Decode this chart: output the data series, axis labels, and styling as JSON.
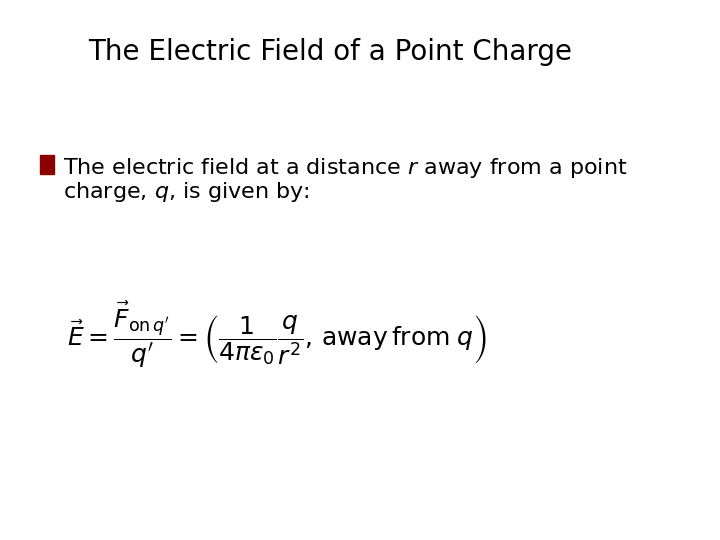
{
  "title": "The Electric Field of a Point Charge",
  "title_fontsize": 20,
  "title_color": "#000000",
  "background_color": "#ffffff",
  "bullet_color": "#8B0000",
  "bullet_text_line1": "The electric field at a distance $r$ away from a point",
  "bullet_text_line2": "charge, $q$, is given by:",
  "bullet_fontsize": 16,
  "formula_fontsize": 18,
  "fig_width": 7.2,
  "fig_height": 5.4
}
